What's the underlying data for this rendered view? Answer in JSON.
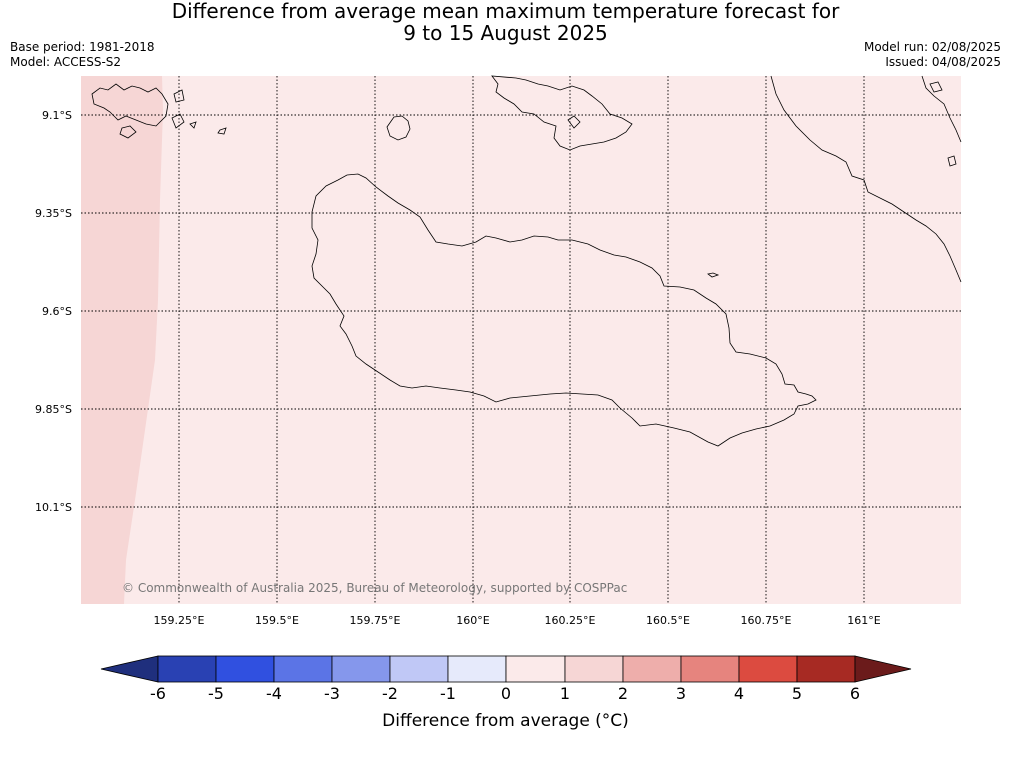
{
  "header": {
    "title_line1": "Difference from average mean maximum temperature forecast for",
    "title_line2": "9 to 15 August 2025",
    "base_period": "Base period: 1981-2018",
    "model": "Model: ACCESS-S2",
    "model_run": "Model run: 02/08/2025",
    "issued": "Issued: 04/08/2025"
  },
  "map": {
    "lat_labels": [
      "9.1°S",
      "9.35°S",
      "9.6°S",
      "9.85°S",
      "10.1°S"
    ],
    "lon_labels": [
      "159.25°E",
      "159.5°E",
      "159.75°E",
      "160°E",
      "160.25°E",
      "160.5°E",
      "160.75°E",
      "161°E"
    ],
    "copyright": "© Commonwealth of Australia 2025, Bureau of Meteorology, supported by COSPPac",
    "field_color_main": "#fbeaea",
    "field_color_west": "#f6d6d5",
    "coast_color": "#000000",
    "grid_style": "dotted"
  },
  "legend": {
    "title": "Difference from average (°C)",
    "tick_labels": [
      "-6",
      "-5",
      "-4",
      "-3",
      "-2",
      "-1",
      "0",
      "1",
      "2",
      "3",
      "4",
      "5",
      "6"
    ],
    "colors": [
      "#1f2f7d",
      "#2941b3",
      "#3050e0",
      "#5b74e6",
      "#8597ec",
      "#c0c8f6",
      "#e6eafb",
      "#fbeaea",
      "#f6d6d5",
      "#eeaeab",
      "#e6847e",
      "#dc4b40",
      "#a72a23",
      "#6b1b1b"
    ]
  }
}
